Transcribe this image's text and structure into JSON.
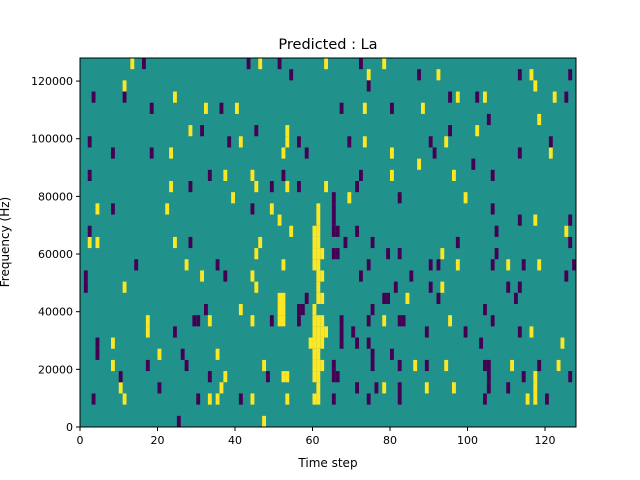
{
  "chart_data": {
    "type": "heatmap",
    "title": "Predicted : La",
    "xlabel": "Time step",
    "ylabel": "Frequency (Hz)",
    "xlim": [
      0,
      128
    ],
    "ylim": [
      0,
      128000
    ],
    "xticks": [
      0,
      20,
      40,
      60,
      80,
      100,
      120
    ],
    "yticks": [
      0,
      20000,
      40000,
      60000,
      80000,
      100000,
      120000
    ],
    "n_cols": 128,
    "n_rows": 33,
    "colormap": "viridis",
    "colors": {
      "background": "#21918c",
      "high": "#fde725",
      "low": "#440154"
    },
    "values": {
      "background": 0.5,
      "high": 1,
      "low": 0
    },
    "rows_order": "top-to-bottom",
    "high_cells_by_row": [
      [
        13,
        46,
        63,
        78
      ],
      [
        74,
        92,
        116
      ],
      [
        11,
        117
      ],
      [
        24,
        97,
        104,
        122
      ],
      [
        32,
        40,
        73,
        88
      ],
      [
        118
      ],
      [
        28,
        53,
        102
      ],
      [
        41,
        53,
        73,
        94
      ],
      [
        23,
        52,
        80,
        121
      ],
      [
        87
      ],
      [
        37,
        44,
        80,
        96
      ],
      [
        23,
        45,
        53,
        63
      ],
      [
        39,
        69,
        99
      ],
      [
        4,
        22,
        49,
        61
      ],
      [
        51,
        61,
        117
      ],
      [
        54,
        60,
        61,
        125
      ],
      [
        2,
        4,
        24,
        46,
        60,
        61
      ],
      [
        45,
        60,
        61,
        62,
        93
      ],
      [
        27,
        52,
        60,
        61,
        97,
        110,
        118
      ],
      [
        31,
        44,
        61,
        62
      ],
      [
        11,
        45,
        61,
        93
      ],
      [
        51,
        52,
        61,
        62,
        84
      ],
      [
        41,
        51,
        52,
        60
      ],
      [
        17,
        33,
        44,
        51,
        52,
        60,
        61,
        62,
        78,
        95
      ],
      [
        17,
        60,
        61,
        62,
        63,
        116
      ],
      [
        8,
        59,
        60,
        61,
        62,
        124
      ],
      [
        20,
        35,
        60,
        61
      ],
      [
        8,
        47,
        60,
        61,
        62,
        86,
        94,
        111,
        123
      ],
      [
        37,
        52,
        53,
        60,
        61,
        117
      ],
      [
        10,
        36,
        61,
        78,
        89,
        96,
        117
      ],
      [
        11,
        33,
        35,
        44,
        53,
        60,
        61,
        115,
        117
      ],
      [],
      [
        47
      ]
    ],
    "low_cells_by_row": [
      [
        16,
        43,
        51,
        72
      ],
      [
        54,
        87,
        113,
        126
      ],
      [
        74
      ],
      [
        3,
        11,
        95,
        102,
        125
      ],
      [
        18,
        36,
        67,
        80
      ],
      [
        105
      ],
      [
        31,
        45,
        95
      ],
      [
        2,
        38,
        56,
        69,
        90,
        121
      ],
      [
        8,
        18,
        58,
        91,
        113
      ],
      [
        101
      ],
      [
        2,
        33,
        52,
        72,
        106
      ],
      [
        28,
        49,
        56,
        71
      ],
      [
        65,
        82
      ],
      [
        8,
        44,
        65,
        106
      ],
      [
        65,
        113,
        126
      ],
      [
        2,
        65,
        66,
        71,
        107
      ],
      [
        28,
        68,
        75,
        97,
        126
      ],
      [
        65,
        66,
        79,
        82,
        107
      ],
      [
        14,
        35,
        74,
        90,
        92,
        106,
        114,
        127
      ],
      [
        1,
        37,
        72,
        85,
        125
      ],
      [
        1,
        81,
        90,
        110,
        113
      ],
      [
        58,
        78,
        79,
        92,
        112
      ],
      [
        32,
        56,
        57,
        75,
        104
      ],
      [
        29,
        30,
        49,
        56,
        67,
        74,
        82,
        83,
        106
      ],
      [
        24,
        67,
        70,
        89,
        99,
        113
      ],
      [
        4,
        67,
        71,
        74,
        103
      ],
      [
        4,
        26,
        75,
        80
      ],
      [
        17,
        27,
        65,
        75,
        82,
        89,
        104,
        105,
        118
      ],
      [
        10,
        33,
        48,
        65,
        66,
        105,
        114,
        126
      ],
      [
        20,
        71,
        76,
        82,
        105,
        110
      ],
      [
        3,
        30,
        41,
        65,
        74,
        82,
        104,
        120
      ],
      [],
      [
        25
      ]
    ]
  }
}
